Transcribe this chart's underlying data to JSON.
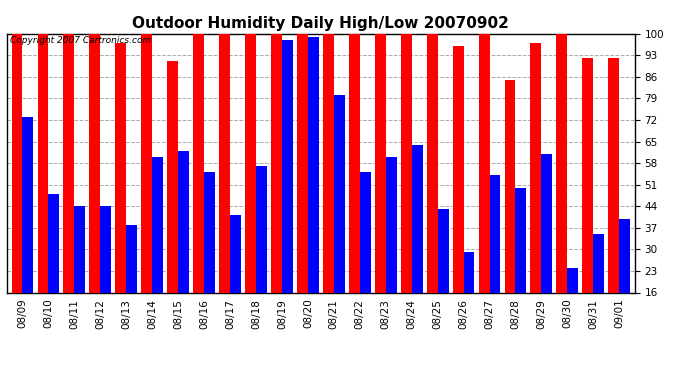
{
  "title": "Outdoor Humidity Daily High/Low 20070902",
  "copyright_text": "Copyright 2007 Cartronics.com",
  "dates": [
    "08/09",
    "08/10",
    "08/11",
    "08/12",
    "08/13",
    "08/14",
    "08/15",
    "08/16",
    "08/17",
    "08/18",
    "08/19",
    "08/20",
    "08/21",
    "08/22",
    "08/23",
    "08/24",
    "08/25",
    "08/26",
    "08/27",
    "08/28",
    "08/29",
    "08/30",
    "08/31",
    "09/01"
  ],
  "highs": [
    100,
    100,
    100,
    100,
    97,
    100,
    91,
    100,
    100,
    100,
    100,
    100,
    100,
    100,
    100,
    100,
    100,
    96,
    100,
    85,
    97,
    100,
    92,
    92
  ],
  "lows": [
    73,
    48,
    44,
    44,
    38,
    60,
    62,
    55,
    41,
    57,
    98,
    99,
    80,
    55,
    60,
    64,
    43,
    29,
    54,
    50,
    61,
    24,
    35,
    40
  ],
  "ylim_min": 16,
  "ylim_max": 100,
  "yticks": [
    16,
    23,
    30,
    37,
    44,
    51,
    58,
    65,
    72,
    79,
    86,
    93,
    100
  ],
  "bar_width": 0.42,
  "high_color": "#ff0000",
  "low_color": "#0000ff",
  "background_color": "#ffffff",
  "grid_color": "#aaaaaa",
  "title_fontsize": 11,
  "tick_fontsize": 7.5,
  "copyright_fontsize": 6.5
}
